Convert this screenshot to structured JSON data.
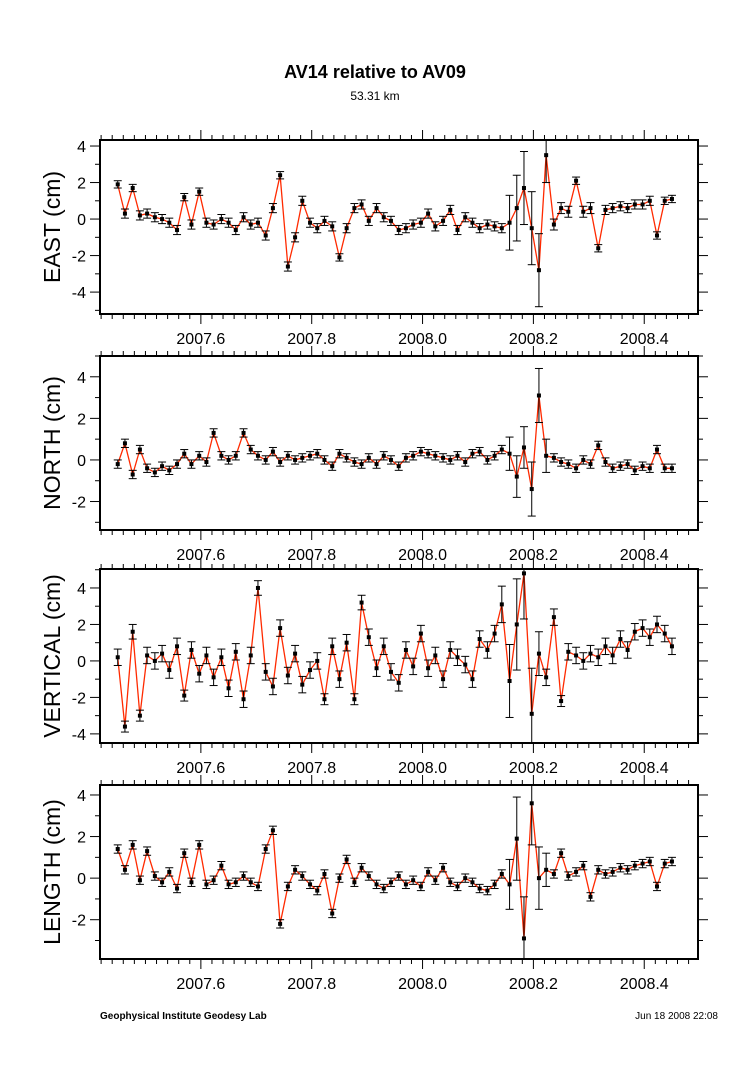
{
  "chart_data": {
    "type": "scatter",
    "title": "AV14 relative to AV09",
    "subtitle": "53.31 km",
    "xlim": [
      2007.418,
      2008.497
    ],
    "xticks": [
      "2007.6",
      "2007.8",
      "2008.0",
      "2008.2",
      "2008.4"
    ],
    "line_color": "#ff2a00",
    "point_color": "#000000",
    "t": [
      2007.45,
      2007.463,
      2007.477,
      2007.49,
      2007.503,
      2007.517,
      2007.53,
      2007.543,
      2007.557,
      2007.57,
      2007.583,
      2007.597,
      2007.61,
      2007.623,
      2007.637,
      2007.65,
      2007.663,
      2007.677,
      2007.69,
      2007.703,
      2007.717,
      2007.73,
      2007.743,
      2007.757,
      2007.77,
      2007.783,
      2007.797,
      2007.81,
      2007.823,
      2007.837,
      2007.85,
      2007.863,
      2007.877,
      2007.89,
      2007.903,
      2007.917,
      2007.93,
      2007.943,
      2007.957,
      2007.97,
      2007.983,
      2007.997,
      2008.01,
      2008.023,
      2008.037,
      2008.05,
      2008.063,
      2008.077,
      2008.09,
      2008.103,
      2008.117,
      2008.13,
      2008.143,
      2008.157,
      2008.17,
      2008.183,
      2008.197,
      2008.21,
      2008.223,
      2008.237,
      2008.25,
      2008.263,
      2008.277,
      2008.29,
      2008.303,
      2008.317,
      2008.33,
      2008.343,
      2008.357,
      2008.37,
      2008.383,
      2008.397,
      2008.41,
      2008.423,
      2008.437,
      2008.45
    ],
    "panels": [
      {
        "ylabel": "EAST (cm)",
        "ylim": [
          -5.2,
          4.33
        ],
        "yticks": [
          -4,
          -2,
          0,
          2,
          4
        ],
        "values": [
          1.9,
          0.3,
          1.7,
          0.2,
          0.3,
          0.1,
          0.0,
          -0.2,
          -0.6,
          1.2,
          -0.3,
          1.5,
          -0.2,
          -0.3,
          0.0,
          -0.2,
          -0.6,
          0.1,
          -0.3,
          -0.2,
          -0.9,
          0.6,
          2.4,
          -2.6,
          -1.0,
          1.0,
          -0.2,
          -0.5,
          -0.1,
          -0.4,
          -2.1,
          -0.5,
          0.6,
          0.8,
          -0.1,
          0.6,
          0.1,
          -0.1,
          -0.6,
          -0.5,
          -0.3,
          -0.2,
          0.3,
          -0.4,
          -0.1,
          0.5,
          -0.6,
          0.1,
          -0.2,
          -0.5,
          -0.3,
          -0.4,
          -0.5,
          -0.2,
          0.6,
          1.7,
          -0.5,
          -2.8,
          3.5,
          -0.3,
          0.6,
          0.4,
          2.1,
          0.4,
          0.6,
          -1.6,
          0.5,
          0.6,
          0.7,
          0.6,
          0.8,
          0.8,
          1.0,
          -0.9,
          1.0,
          1.1
        ],
        "sigma": [
          0.2,
          0.25,
          0.2,
          0.25,
          0.25,
          0.25,
          0.25,
          0.25,
          0.25,
          0.2,
          0.25,
          0.2,
          0.25,
          0.25,
          0.25,
          0.25,
          0.25,
          0.25,
          0.25,
          0.25,
          0.25,
          0.25,
          0.2,
          0.25,
          0.25,
          0.25,
          0.25,
          0.25,
          0.25,
          0.25,
          0.2,
          0.25,
          0.25,
          0.25,
          0.25,
          0.25,
          0.25,
          0.25,
          0.25,
          0.25,
          0.25,
          0.25,
          0.25,
          0.25,
          0.25,
          0.25,
          0.25,
          0.25,
          0.25,
          0.25,
          0.25,
          0.25,
          0.25,
          1.5,
          1.8,
          2.0,
          2.0,
          2.0,
          1.5,
          0.3,
          0.3,
          0.3,
          0.2,
          0.3,
          0.3,
          0.2,
          0.25,
          0.25,
          0.25,
          0.25,
          0.25,
          0.25,
          0.25,
          0.2,
          0.2,
          0.2
        ]
      },
      {
        "ylabel": "NORTH (cm)",
        "ylim": [
          -3.37,
          5.0
        ],
        "yticks": [
          -2,
          0,
          2,
          4
        ],
        "values": [
          -0.2,
          0.8,
          -0.7,
          0.5,
          -0.4,
          -0.6,
          -0.3,
          -0.5,
          -0.2,
          0.3,
          -0.2,
          0.2,
          -0.1,
          1.3,
          0.2,
          0.0,
          0.2,
          1.3,
          0.5,
          0.2,
          0.0,
          0.4,
          -0.1,
          0.2,
          0.0,
          0.1,
          0.2,
          0.3,
          0.0,
          -0.3,
          0.3,
          0.1,
          -0.1,
          -0.2,
          0.1,
          -0.2,
          0.2,
          0.0,
          -0.3,
          0.1,
          0.2,
          0.4,
          0.3,
          0.2,
          0.1,
          0.0,
          0.2,
          -0.1,
          0.3,
          0.4,
          0.0,
          0.2,
          0.5,
          0.3,
          -0.8,
          0.6,
          -1.4,
          3.1,
          0.2,
          0.1,
          -0.1,
          -0.2,
          -0.4,
          0.0,
          -0.2,
          0.7,
          -0.1,
          -0.4,
          -0.3,
          -0.2,
          -0.5,
          -0.3,
          -0.4,
          0.5,
          -0.4,
          -0.4
        ],
        "sigma": [
          0.2,
          0.2,
          0.2,
          0.2,
          0.2,
          0.2,
          0.2,
          0.2,
          0.2,
          0.2,
          0.2,
          0.2,
          0.2,
          0.2,
          0.2,
          0.2,
          0.2,
          0.2,
          0.2,
          0.2,
          0.2,
          0.2,
          0.2,
          0.2,
          0.2,
          0.2,
          0.2,
          0.2,
          0.2,
          0.2,
          0.2,
          0.2,
          0.2,
          0.2,
          0.2,
          0.2,
          0.2,
          0.2,
          0.2,
          0.2,
          0.2,
          0.2,
          0.2,
          0.2,
          0.2,
          0.2,
          0.2,
          0.2,
          0.2,
          0.2,
          0.2,
          0.2,
          0.2,
          0.8,
          1.0,
          1.0,
          1.3,
          1.3,
          0.8,
          0.2,
          0.2,
          0.2,
          0.2,
          0.2,
          0.2,
          0.2,
          0.2,
          0.2,
          0.2,
          0.2,
          0.2,
          0.2,
          0.2,
          0.2,
          0.2,
          0.2
        ]
      },
      {
        "ylabel": "VERTICAL (cm)",
        "ylim": [
          -4.5,
          5.04
        ],
        "yticks": [
          -4,
          -2,
          0,
          2,
          4
        ],
        "values": [
          0.2,
          -3.6,
          1.6,
          -3.0,
          0.3,
          0.0,
          0.4,
          -0.5,
          0.8,
          -1.9,
          0.6,
          -0.7,
          0.3,
          -0.9,
          0.2,
          -1.5,
          0.5,
          -2.1,
          0.3,
          4.0,
          -0.6,
          -1.4,
          1.8,
          -0.8,
          0.4,
          -1.3,
          -0.5,
          0.0,
          -2.1,
          0.8,
          -1.0,
          1.0,
          -2.1,
          3.2,
          1.3,
          -0.4,
          0.8,
          -0.6,
          -1.2,
          0.6,
          -0.3,
          1.5,
          -0.4,
          0.3,
          -1.0,
          0.6,
          0.2,
          -0.2,
          -1.0,
          1.2,
          0.6,
          1.5,
          3.1,
          -1.1,
          2.0,
          4.8,
          -2.9,
          0.4,
          -0.9,
          2.4,
          -2.2,
          0.5,
          0.3,
          0.0,
          0.4,
          0.2,
          0.8,
          0.3,
          1.2,
          0.6,
          1.6,
          1.8,
          1.3,
          2.0,
          1.5,
          0.8
        ],
        "sigma": [
          0.45,
          0.3,
          0.4,
          0.3,
          0.45,
          0.45,
          0.45,
          0.45,
          0.45,
          0.3,
          0.45,
          0.45,
          0.45,
          0.45,
          0.45,
          0.45,
          0.45,
          0.45,
          0.45,
          0.4,
          0.45,
          0.45,
          0.45,
          0.45,
          0.45,
          0.45,
          0.45,
          0.45,
          0.3,
          0.45,
          0.45,
          0.45,
          0.3,
          0.4,
          0.45,
          0.45,
          0.45,
          0.45,
          0.45,
          0.45,
          0.45,
          0.45,
          0.45,
          0.45,
          0.45,
          0.45,
          0.45,
          0.45,
          0.45,
          0.45,
          0.45,
          0.45,
          1.0,
          2.0,
          2.5,
          2.5,
          2.5,
          1.2,
          0.45,
          0.45,
          0.3,
          0.45,
          0.45,
          0.45,
          0.45,
          0.45,
          0.45,
          0.45,
          0.45,
          0.45,
          0.45,
          0.45,
          0.45,
          0.45,
          0.45,
          0.45
        ]
      },
      {
        "ylabel": "LENGTH (cm)",
        "ylim": [
          -3.89,
          4.48
        ],
        "yticks": [
          -2,
          0,
          2,
          4
        ],
        "values": [
          1.4,
          0.4,
          1.6,
          -0.1,
          1.3,
          0.1,
          -0.2,
          0.3,
          -0.5,
          1.2,
          -0.2,
          1.6,
          -0.3,
          -0.1,
          0.6,
          -0.3,
          -0.2,
          0.1,
          -0.2,
          -0.4,
          1.4,
          2.3,
          -2.2,
          -0.4,
          0.4,
          0.1,
          -0.3,
          -0.6,
          0.2,
          -1.7,
          0.0,
          0.9,
          -0.2,
          0.5,
          0.1,
          -0.3,
          -0.5,
          -0.2,
          0.1,
          -0.3,
          -0.1,
          -0.4,
          0.3,
          -0.1,
          0.5,
          -0.2,
          -0.4,
          0.0,
          -0.2,
          -0.5,
          -0.6,
          -0.3,
          0.2,
          -0.3,
          1.9,
          -2.9,
          3.6,
          0.0,
          0.4,
          0.2,
          1.2,
          0.1,
          0.3,
          0.6,
          -0.9,
          0.4,
          0.2,
          0.3,
          0.5,
          0.4,
          0.6,
          0.7,
          0.8,
          -0.4,
          0.7,
          0.8
        ],
        "sigma": [
          0.2,
          0.2,
          0.2,
          0.2,
          0.2,
          0.2,
          0.2,
          0.2,
          0.2,
          0.2,
          0.2,
          0.2,
          0.2,
          0.2,
          0.2,
          0.2,
          0.2,
          0.2,
          0.2,
          0.2,
          0.2,
          0.2,
          0.2,
          0.2,
          0.2,
          0.2,
          0.2,
          0.2,
          0.2,
          0.2,
          0.2,
          0.2,
          0.2,
          0.2,
          0.2,
          0.2,
          0.2,
          0.2,
          0.2,
          0.2,
          0.2,
          0.2,
          0.2,
          0.2,
          0.2,
          0.2,
          0.2,
          0.2,
          0.2,
          0.2,
          0.2,
          0.2,
          0.2,
          1.2,
          2.0,
          2.0,
          2.0,
          1.5,
          0.8,
          0.2,
          0.2,
          0.2,
          0.2,
          0.2,
          0.2,
          0.2,
          0.2,
          0.2,
          0.2,
          0.2,
          0.2,
          0.2,
          0.2,
          0.2,
          0.2,
          0.2
        ]
      }
    ]
  },
  "footer": {
    "left": "Geophysical Institute Geodesy Lab",
    "right": "Jun 18 2008 22:08"
  }
}
